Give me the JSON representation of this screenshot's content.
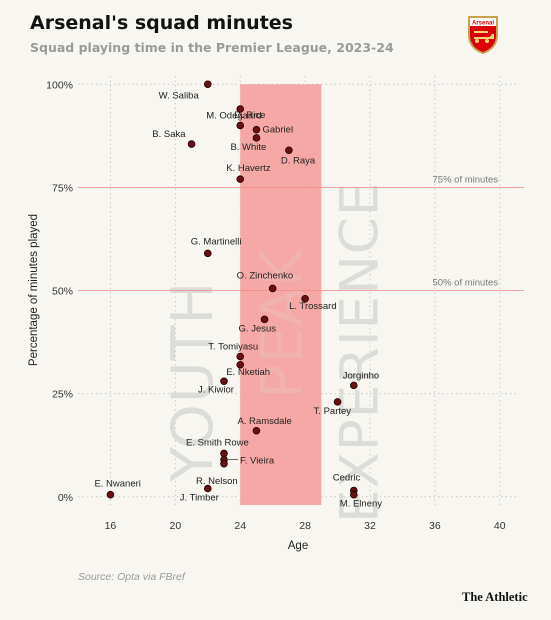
{
  "header": {
    "title": "Arsenal's squad minutes",
    "subtitle": "Squad playing time in the Premier League, 2023-24",
    "crest_text": "Arsenal"
  },
  "footer": {
    "source": "Source: Opta via FBref",
    "brand": "The Athletic"
  },
  "colors": {
    "background": "#f7f6f1",
    "peak_band": "#f4a09c",
    "reference_line": "#f08a84",
    "point_fill": "#6b1010",
    "region_text": "#dcdcd8",
    "grid": "#c9c9c9",
    "crest_red": "#db0007",
    "crest_gold": "#c8a24a"
  },
  "chart_data": {
    "type": "scatter",
    "xlabel": "Age",
    "ylabel": "Percentage of minutes played",
    "xlim": [
      14,
      41
    ],
    "ylim": [
      -2,
      102
    ],
    "xticks": [
      16,
      20,
      24,
      28,
      32,
      36,
      40
    ],
    "yticks": [
      {
        "value": 0,
        "label": "0%"
      },
      {
        "value": 25,
        "label": "25%"
      },
      {
        "value": 50,
        "label": "50%"
      },
      {
        "value": 75,
        "label": "75%"
      },
      {
        "value": 100,
        "label": "100%"
      }
    ],
    "grid": "dotted",
    "peak_band": {
      "x_from": 24,
      "x_to": 29
    },
    "regions": [
      {
        "label": "YOUTH",
        "x": 21
      },
      {
        "label": "PEAK",
        "x": 26.5
      },
      {
        "label": "EXPERIENCE",
        "x": 31.3
      }
    ],
    "reference_lines": [
      {
        "y": 75,
        "label": "75% of minutes"
      },
      {
        "y": 50,
        "label": "50% of minutes"
      }
    ],
    "points": [
      {
        "name": "W. Saliba",
        "age": 22,
        "pct": 100
      },
      {
        "name": "D. Rice",
        "age": 24,
        "pct": 94
      },
      {
        "name": "M. Odegaard",
        "age": 24,
        "pct": 90
      },
      {
        "name": "Gabriel",
        "age": 25,
        "pct": 89
      },
      {
        "name": "B. White",
        "age": 25,
        "pct": 87
      },
      {
        "name": "B. Saka",
        "age": 21,
        "pct": 85.5
      },
      {
        "name": "D. Raya",
        "age": 27,
        "pct": 84
      },
      {
        "name": "K. Havertz",
        "age": 24,
        "pct": 77
      },
      {
        "name": "G. Martinelli",
        "age": 22,
        "pct": 59
      },
      {
        "name": "O. Zinchenko",
        "age": 26,
        "pct": 50.5
      },
      {
        "name": "L. Trossard",
        "age": 28,
        "pct": 48
      },
      {
        "name": "G. Jesus",
        "age": 25.5,
        "pct": 43
      },
      {
        "name": "T. Tomiyasu",
        "age": 24,
        "pct": 34
      },
      {
        "name": "E. Nketiah",
        "age": 24,
        "pct": 32
      },
      {
        "name": "J. Kiwior",
        "age": 23,
        "pct": 28
      },
      {
        "name": "Jorginho",
        "age": 31,
        "pct": 27
      },
      {
        "name": "T. Partey",
        "age": 30,
        "pct": 23
      },
      {
        "name": "A. Ramsdale",
        "age": 25,
        "pct": 16
      },
      {
        "name": "E. Smith Rowe",
        "age": 23,
        "pct": 10.5
      },
      {
        "name": "F. Vieira",
        "age": 23,
        "pct": 9
      },
      {
        "name": "R. Nelson",
        "age": 23,
        "pct": 8
      },
      {
        "name": "E. Nwaneri",
        "age": 16,
        "pct": 0.5
      },
      {
        "name": "J. Timber",
        "age": 22,
        "pct": 2
      },
      {
        "name": "Cedric",
        "age": 31,
        "pct": 1.5
      },
      {
        "name": "M. Elneny",
        "age": 31,
        "pct": 0.5
      }
    ]
  }
}
